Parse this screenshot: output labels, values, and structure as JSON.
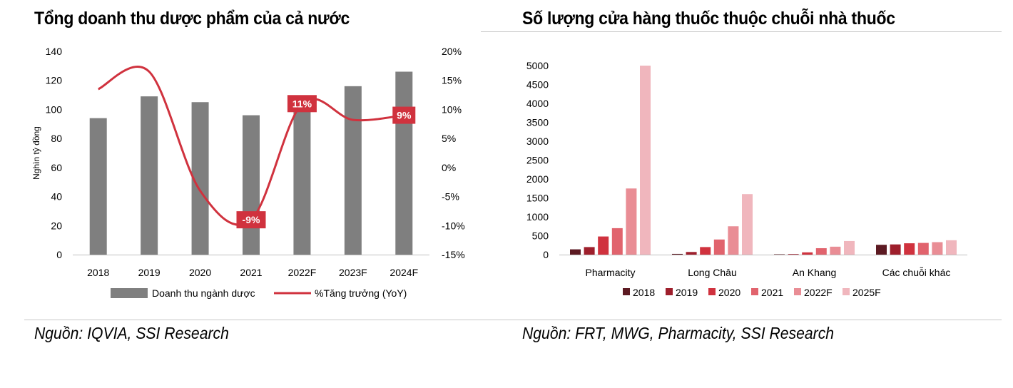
{
  "chart_data": [
    {
      "type": "bar",
      "title": "Tổng doanh thu dược phẩm của cả nước",
      "source": "Nguồn: IQVIA, SSI Research",
      "ylabel": "Nghìn tỷ đồng",
      "categories": [
        "2018",
        "2019",
        "2020",
        "2021",
        "2022F",
        "2023F",
        "2024F"
      ],
      "ylim": [
        0,
        140
      ],
      "yticks": [
        0,
        20,
        40,
        60,
        80,
        100,
        120,
        140
      ],
      "y2lim": [
        -15,
        20
      ],
      "y2ticks": [
        "-15%",
        "-10%",
        "-5%",
        "0%",
        "5%",
        "10%",
        "15%",
        "20%"
      ],
      "grid": false,
      "legend_position": "bottom",
      "series": [
        {
          "name": "Doanh thu ngành dược",
          "type": "bar",
          "axis": "left",
          "color": "#7f7f7f",
          "values": [
            94,
            109,
            105,
            96,
            107,
            116,
            126
          ]
        },
        {
          "name": "%Tăng trưởng (YoY)",
          "type": "line",
          "axis": "right",
          "color": "#d0323e",
          "values": [
            13.5,
            16.5,
            -4,
            -9,
            11,
            8.2,
            9
          ]
        }
      ],
      "annotations": [
        {
          "category": "2021",
          "label": "-9%"
        },
        {
          "category": "2022F",
          "label": "11%"
        },
        {
          "category": "2024F",
          "label": "9%"
        }
      ]
    },
    {
      "type": "bar",
      "title": "Số lượng cửa hàng thuốc thuộc chuỗi nhà thuốc",
      "source": "Nguồn: FRT, MWG, Pharmacity, SSI Research",
      "categories": [
        "Pharmacity",
        "Long Châu",
        "An Khang",
        "Các chuỗi khác"
      ],
      "ylim": [
        0,
        5000
      ],
      "yticks": [
        0,
        500,
        1000,
        1500,
        2000,
        2500,
        3000,
        3500,
        4000,
        4500,
        5000
      ],
      "grid": false,
      "legend_position": "bottom",
      "series": [
        {
          "name": "2018",
          "color": "#5c1a22",
          "values": [
            140,
            20,
            10,
            260
          ]
        },
        {
          "name": "2019",
          "color": "#9e1f2c",
          "values": [
            200,
            70,
            15,
            270
          ]
        },
        {
          "name": "2020",
          "color": "#d0323e",
          "values": [
            480,
            200,
            60,
            300
          ]
        },
        {
          "name": "2021",
          "color": "#e1636d",
          "values": [
            700,
            400,
            170,
            310
          ]
        },
        {
          "name": "2022F",
          "color": "#e98d95",
          "values": [
            1750,
            750,
            210,
            330
          ]
        },
        {
          "name": "2025F",
          "color": "#f0b6bd",
          "values": [
            5000,
            1600,
            360,
            380
          ]
        }
      ]
    }
  ]
}
